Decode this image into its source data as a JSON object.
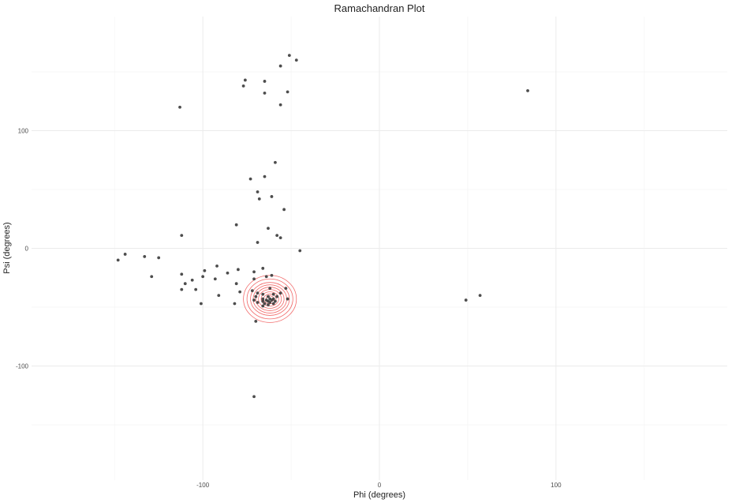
{
  "chart_data": {
    "type": "scatter",
    "title": "Ramachandran Plot",
    "xlabel": "Phi (degrees)",
    "ylabel": "Psi (degrees)",
    "xlim": [
      -197,
      197
    ],
    "ylim": [
      -197,
      197
    ],
    "x_ticks": [
      -100,
      0,
      100
    ],
    "y_ticks": [
      -100,
      0,
      100
    ],
    "x_minor": [
      -150,
      -50,
      50,
      150
    ],
    "y_minor": [
      -150,
      -50,
      50,
      150
    ],
    "grid": true,
    "legend": "none",
    "point_color": "#3a3a3a",
    "contour_color": "#f05050",
    "density_center": [
      -62,
      -43
    ],
    "points": [
      [
        -51,
        164
      ],
      [
        -47,
        160
      ],
      [
        -56,
        155
      ],
      [
        -76,
        143
      ],
      [
        -65,
        142
      ],
      [
        -77,
        138
      ],
      [
        -52,
        133
      ],
      [
        -65,
        132
      ],
      [
        -56,
        122
      ],
      [
        -113,
        120
      ],
      [
        84,
        134
      ],
      [
        -59,
        73
      ],
      [
        -65,
        61
      ],
      [
        -73,
        59
      ],
      [
        -69,
        48
      ],
      [
        -61,
        44
      ],
      [
        -68,
        42
      ],
      [
        -54,
        33
      ],
      [
        -81,
        20
      ],
      [
        -63,
        17
      ],
      [
        -112,
        11
      ],
      [
        -58,
        11
      ],
      [
        -56,
        9
      ],
      [
        -69,
        5
      ],
      [
        -45,
        -2
      ],
      [
        -144,
        -5
      ],
      [
        -133,
        -7
      ],
      [
        -125,
        -8
      ],
      [
        -148,
        -10
      ],
      [
        -92,
        -15
      ],
      [
        -66,
        -17
      ],
      [
        -80,
        -18
      ],
      [
        -99,
        -19
      ],
      [
        -71,
        -20
      ],
      [
        -86,
        -21
      ],
      [
        -112,
        -22
      ],
      [
        -129,
        -24
      ],
      [
        -100,
        -24
      ],
      [
        -64,
        -24
      ],
      [
        -61,
        -23
      ],
      [
        -93,
        -26
      ],
      [
        -71,
        -26
      ],
      [
        -106,
        -27
      ],
      [
        -110,
        -30
      ],
      [
        -81,
        -30
      ],
      [
        -62,
        -34
      ],
      [
        -53,
        -34
      ],
      [
        -104,
        -35
      ],
      [
        -112,
        -35
      ],
      [
        -72,
        -36
      ],
      [
        -79,
        -37
      ],
      [
        -69,
        -38
      ],
      [
        -56,
        -38
      ],
      [
        -66,
        -39
      ],
      [
        -60,
        -39
      ],
      [
        -91,
        -40
      ],
      [
        -70,
        -41
      ],
      [
        -63,
        -41
      ],
      [
        -58,
        -41
      ],
      [
        -66,
        -43
      ],
      [
        -62,
        -43
      ],
      [
        -60,
        -43
      ],
      [
        -52,
        -43
      ],
      [
        -71,
        -44
      ],
      [
        -64,
        -44
      ],
      [
        -61,
        -44
      ],
      [
        49,
        -44
      ],
      [
        57,
        -40
      ],
      [
        -66,
        -45
      ],
      [
        -63,
        -45
      ],
      [
        -59,
        -45
      ],
      [
        -69,
        -46
      ],
      [
        -62,
        -46
      ],
      [
        -82,
        -47
      ],
      [
        -101,
        -47
      ],
      [
        -65,
        -47
      ],
      [
        -60,
        -47
      ],
      [
        -63,
        -48
      ],
      [
        -66,
        -49
      ],
      [
        -70,
        -62
      ],
      [
        -71,
        -126
      ]
    ],
    "density_levels": [
      {
        "rx": 15,
        "ry": 20
      },
      {
        "rx": 13,
        "ry": 17
      },
      {
        "rx": 11,
        "ry": 14
      },
      {
        "rx": 9.5,
        "ry": 12
      },
      {
        "rx": 8,
        "ry": 10
      },
      {
        "rx": 6.5,
        "ry": 8
      },
      {
        "rx": 5,
        "ry": 6
      },
      {
        "rx": 3.5,
        "ry": 4.2
      },
      {
        "rx": 2.2,
        "ry": 2.6
      }
    ]
  }
}
